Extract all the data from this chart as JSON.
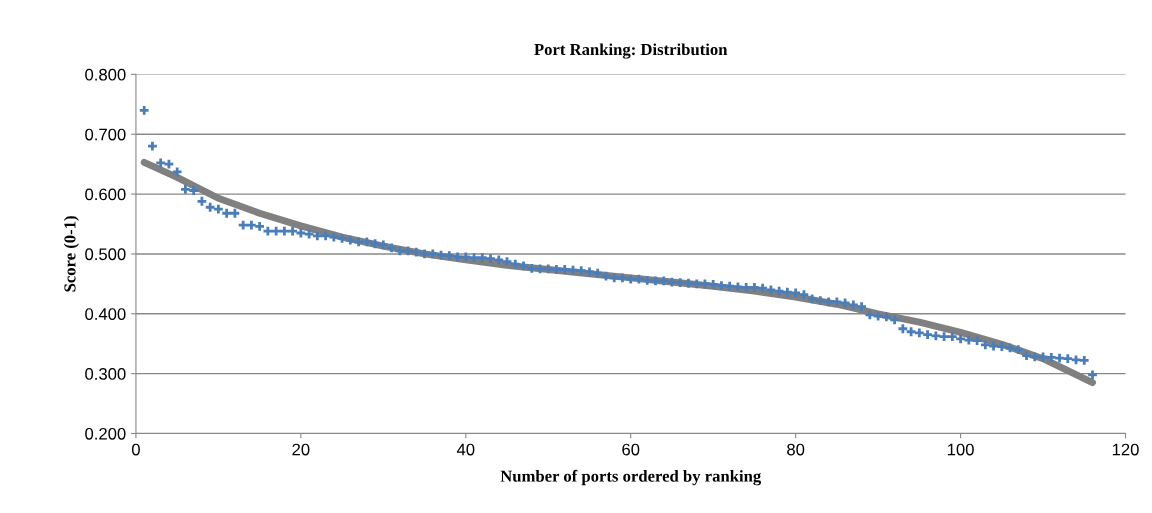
{
  "chart_data": {
    "type": "scatter",
    "title": "Port Ranking: Distribution",
    "xlabel": "Number of ports ordered by ranking",
    "ylabel": "Score (0-1)",
    "xlim": [
      0,
      120
    ],
    "xticks": [
      0,
      20,
      40,
      60,
      80,
      100,
      120
    ],
    "ylim": [
      0.2,
      0.8
    ],
    "yticks": [
      {
        "value": 0.2,
        "label": "0.200"
      },
      {
        "value": 0.3,
        "label": "0.300"
      },
      {
        "value": 0.4,
        "label": "0.400"
      },
      {
        "value": 0.5,
        "label": "0.500"
      },
      {
        "value": 0.6,
        "label": "0.600"
      },
      {
        "value": 0.7,
        "label": "0.700"
      },
      {
        "value": 0.8,
        "label": "0.800"
      }
    ],
    "grid": "y",
    "legend": false,
    "series": [
      {
        "marker": "cross",
        "color": "#4a7ebb",
        "x": [
          1,
          2,
          3,
          4,
          5,
          6,
          7,
          8,
          9,
          10,
          11,
          12,
          13,
          14,
          15,
          16,
          17,
          18,
          19,
          20,
          21,
          22,
          23,
          24,
          25,
          26,
          27,
          28,
          29,
          30,
          31,
          32,
          33,
          34,
          35,
          36,
          37,
          38,
          39,
          40,
          41,
          42,
          43,
          44,
          45,
          46,
          47,
          48,
          49,
          50,
          51,
          52,
          53,
          54,
          55,
          56,
          57,
          58,
          59,
          60,
          61,
          62,
          63,
          64,
          65,
          66,
          67,
          68,
          69,
          70,
          71,
          72,
          73,
          74,
          75,
          76,
          77,
          78,
          79,
          80,
          81,
          82,
          83,
          84,
          85,
          86,
          87,
          88,
          89,
          90,
          91,
          92,
          93,
          94,
          95,
          96,
          97,
          98,
          99,
          100,
          101,
          102,
          103,
          104,
          105,
          106,
          107,
          108,
          109,
          110,
          111,
          112,
          113,
          114,
          115,
          116
        ],
        "values": [
          0.74,
          0.68,
          0.652,
          0.65,
          0.637,
          0.608,
          0.606,
          0.588,
          0.578,
          0.575,
          0.568,
          0.568,
          0.548,
          0.548,
          0.546,
          0.538,
          0.538,
          0.538,
          0.538,
          0.535,
          0.533,
          0.53,
          0.53,
          0.528,
          0.526,
          0.523,
          0.52,
          0.52,
          0.517,
          0.515,
          0.51,
          0.505,
          0.505,
          0.503,
          0.5,
          0.5,
          0.498,
          0.497,
          0.495,
          0.495,
          0.494,
          0.494,
          0.492,
          0.49,
          0.487,
          0.483,
          0.48,
          0.476,
          0.475,
          0.475,
          0.474,
          0.474,
          0.473,
          0.472,
          0.47,
          0.468,
          0.463,
          0.46,
          0.46,
          0.458,
          0.458,
          0.456,
          0.455,
          0.455,
          0.453,
          0.452,
          0.451,
          0.45,
          0.45,
          0.449,
          0.447,
          0.446,
          0.445,
          0.444,
          0.444,
          0.443,
          0.44,
          0.438,
          0.436,
          0.435,
          0.432,
          0.425,
          0.422,
          0.42,
          0.42,
          0.418,
          0.415,
          0.412,
          0.398,
          0.396,
          0.395,
          0.39,
          0.375,
          0.37,
          0.368,
          0.365,
          0.363,
          0.362,
          0.362,
          0.358,
          0.356,
          0.355,
          0.348,
          0.346,
          0.345,
          0.343,
          0.34,
          0.33,
          0.328,
          0.328,
          0.327,
          0.326,
          0.325,
          0.323,
          0.322,
          0.298
        ]
      },
      {
        "type": "line",
        "marker": "none",
        "line_style": "solid",
        "color": "#808080",
        "x": [
          1,
          5,
          10,
          15,
          20,
          25,
          30,
          35,
          40,
          45,
          50,
          55,
          60,
          65,
          70,
          75,
          80,
          85,
          90,
          95,
          100,
          105,
          110,
          113,
          116
        ],
        "values": [
          0.653,
          0.628,
          0.593,
          0.568,
          0.547,
          0.528,
          0.513,
          0.5,
          0.49,
          0.481,
          0.474,
          0.467,
          0.46,
          0.453,
          0.446,
          0.438,
          0.428,
          0.416,
          0.4,
          0.386,
          0.369,
          0.349,
          0.325,
          0.305,
          0.285
        ]
      }
    ]
  }
}
